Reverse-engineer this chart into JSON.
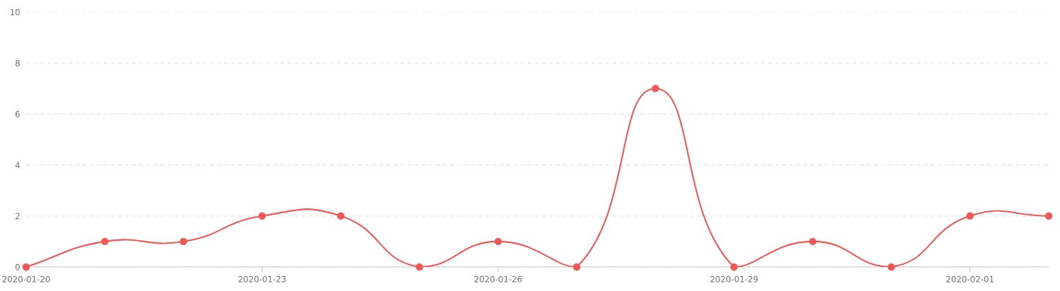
{
  "chart_data": {
    "type": "line",
    "categories": [
      "2020-01-20",
      null,
      null,
      "2020-01-23",
      null,
      null,
      "2020-01-26",
      null,
      null,
      "2020-01-29",
      null,
      null,
      "2020-02-01",
      null
    ],
    "series": [
      {
        "color": "#f25757",
        "values": [
          0,
          1,
          1,
          2,
          2,
          0,
          1,
          0,
          7,
          0,
          1,
          0,
          2,
          2
        ]
      }
    ],
    "ylim": [
      0,
      10
    ],
    "yticks": [
      0,
      2,
      4,
      6,
      8,
      10
    ],
    "grid": "y",
    "marker": "circle",
    "line_style": "solid"
  }
}
